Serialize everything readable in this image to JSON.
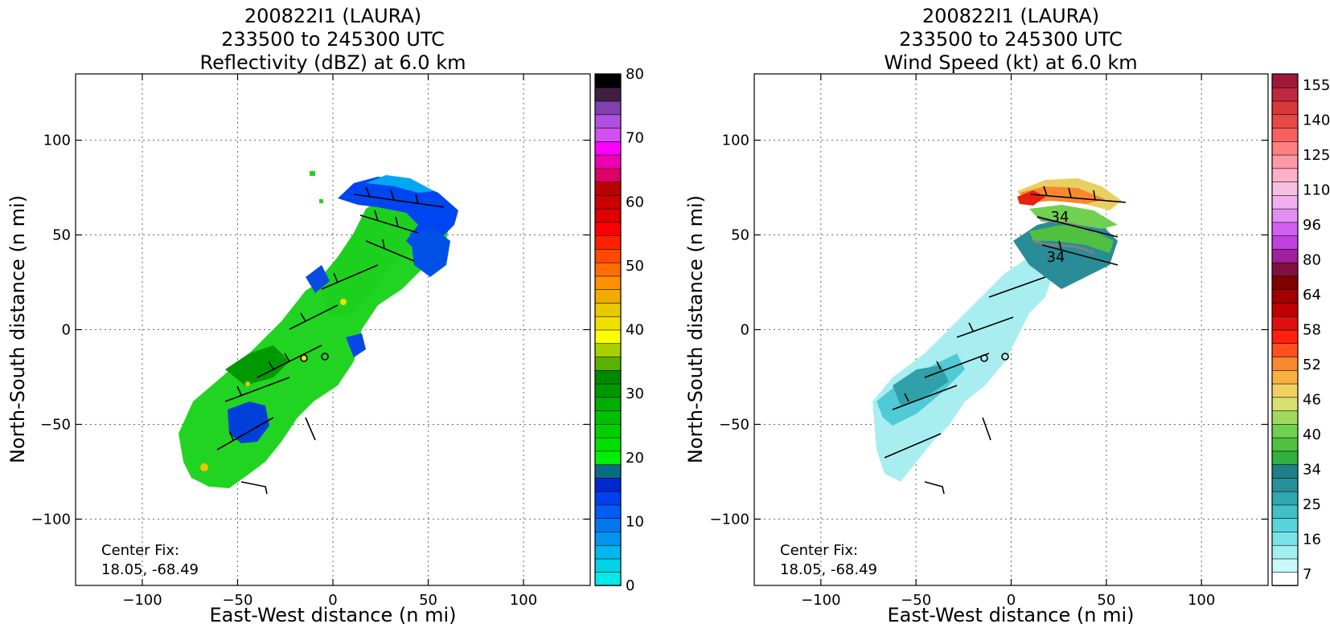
{
  "chart_data": [
    {
      "type": "heatmap",
      "title": [
        "200822I1 (LAURA)",
        "233500 to 245300 UTC",
        "Reflectivity (dBZ) at 6.0 km"
      ],
      "xlabel": "East-West distance (n mi)",
      "ylabel": "North-South distance (n mi)",
      "xlim": [
        -135,
        135
      ],
      "ylim": [
        -135,
        135
      ],
      "x_ticks": [
        -100,
        -50,
        0,
        50,
        100
      ],
      "y_ticks": [
        100,
        50,
        0,
        -50,
        -100
      ],
      "grid": true,
      "annotation": [
        "Center Fix:",
        "18.05, -68.49"
      ],
      "colorbar": {
        "min": 0,
        "max": 80,
        "tick_values": [
          0,
          10,
          20,
          30,
          40,
          50,
          60,
          70,
          80
        ],
        "tick_labels": [
          "0",
          "10",
          "20",
          "30",
          "40",
          "50",
          "60",
          "70",
          "80"
        ],
        "colors": [
          "#00eaea",
          "#00d3e6",
          "#00b8ee",
          "#0096f0",
          "#0078f0",
          "#005cf5",
          "#0040f0",
          "#0028d0",
          "#0a6c82",
          "#00f000",
          "#00e000",
          "#00d000",
          "#00c000",
          "#00ad00",
          "#009800",
          "#008800",
          "#5ab000",
          "#a8d000",
          "#ffff00",
          "#f0e000",
          "#e8c800",
          "#f0aa00",
          "#ff9000",
          "#ff6e00",
          "#ff4800",
          "#ff2000",
          "#ff0000",
          "#e00000",
          "#cc0000",
          "#bb0000",
          "#dd0066",
          "#f000b0",
          "#ff00ff",
          "#d050f0",
          "#b050e0",
          "#8040b0",
          "#402040",
          "#000000"
        ]
      }
    },
    {
      "type": "heatmap",
      "title": [
        "200822I1 (LAURA)",
        "233500 to 245300 UTC",
        "Wind Speed (kt) at 6.0 km"
      ],
      "xlabel": "East-West distance (n mi)",
      "ylabel": "North-South distance (n mi)",
      "xlim": [
        -135,
        135
      ],
      "ylim": [
        -135,
        135
      ],
      "x_ticks": [
        -100,
        -50,
        0,
        50,
        100
      ],
      "y_ticks": [
        100,
        50,
        0,
        -50,
        -100
      ],
      "grid": true,
      "annotation": [
        "Center Fix:",
        "18.05, -68.49"
      ],
      "contour_labels": [
        "34",
        "34"
      ],
      "colorbar": {
        "min": 7,
        "max": 160,
        "tick_values": [
          7,
          16,
          25,
          34,
          40,
          46,
          52,
          58,
          64,
          80,
          96,
          110,
          125,
          140,
          155
        ],
        "tick_labels": [
          "7",
          "16",
          "25",
          "34",
          "40",
          "46",
          "52",
          "58",
          "64",
          "80",
          "96",
          "110",
          "125",
          "140",
          "155"
        ],
        "colors": [
          "#ffffff",
          "#c8f8f8",
          "#a0f0f0",
          "#78e4e8",
          "#58d4dc",
          "#40c0c8",
          "#30a8b0",
          "#289098",
          "#208088",
          "#30b040",
          "#50c040",
          "#70d050",
          "#a0d860",
          "#d8e070",
          "#f0d060",
          "#f8b040",
          "#f88830",
          "#ff5020",
          "#ff2010",
          "#e01010",
          "#c00000",
          "#a00000",
          "#800000",
          "#801040",
          "#a020a0",
          "#c040e0",
          "#d060f0",
          "#e090f0",
          "#f0b0f0",
          "#f8c0e0",
          "#ffb0c8",
          "#ff98a8",
          "#ff8080",
          "#f86060",
          "#e84848",
          "#d83838",
          "#c02840",
          "#a01838"
        ]
      }
    }
  ]
}
